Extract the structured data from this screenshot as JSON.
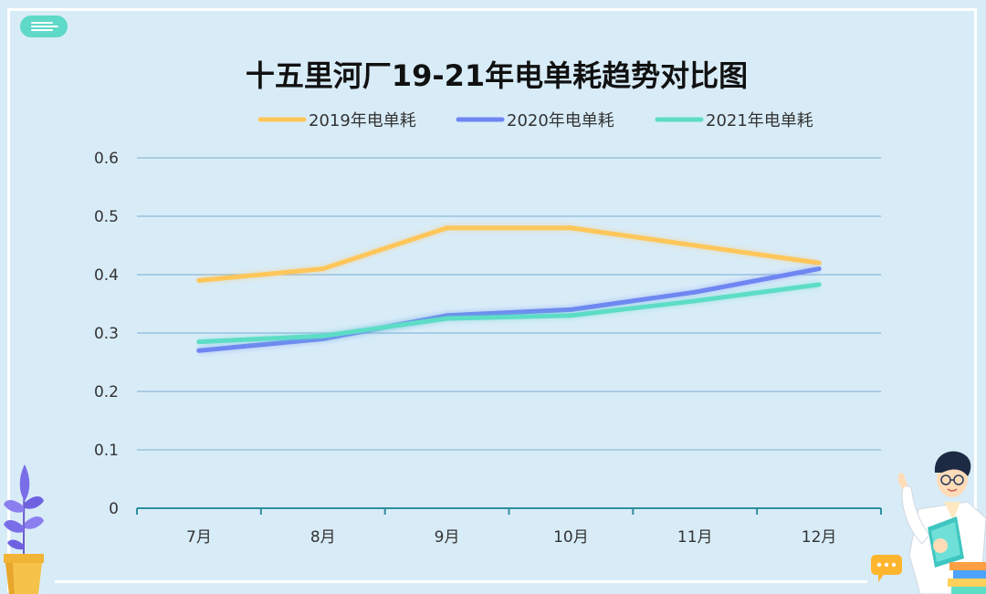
{
  "chart_data": {
    "type": "line",
    "title": "十五里河厂19-21年电单耗趋势对比图",
    "categories": [
      "7月",
      "8月",
      "9月",
      "10月",
      "11月",
      "12月"
    ],
    "ylim": [
      0,
      0.6
    ],
    "yticks": [
      "0",
      "0.1",
      "0.2",
      "0.3",
      "0.4",
      "0.5",
      "0.6"
    ],
    "grid": true,
    "legend_position": "top",
    "series": [
      {
        "name": "2019年电单耗",
        "color": "#ffc65a",
        "values": [
          0.39,
          0.41,
          0.48,
          0.48,
          0.45,
          0.42
        ]
      },
      {
        "name": "2020年电单耗",
        "color": "#6f86f2",
        "values": [
          0.27,
          0.29,
          0.33,
          0.34,
          0.37,
          0.41
        ]
      },
      {
        "name": "2021年电单耗",
        "color": "#5dddc6",
        "values": [
          0.285,
          0.295,
          0.325,
          0.33,
          0.355,
          0.383
        ]
      }
    ]
  },
  "decorations": {
    "menu_icon": "hamburger-lines-icon",
    "plant": "potted-plant-illustration",
    "teacher": "teacher-holding-book-illustration",
    "chat_bubble": "chat-bubble-icon"
  }
}
